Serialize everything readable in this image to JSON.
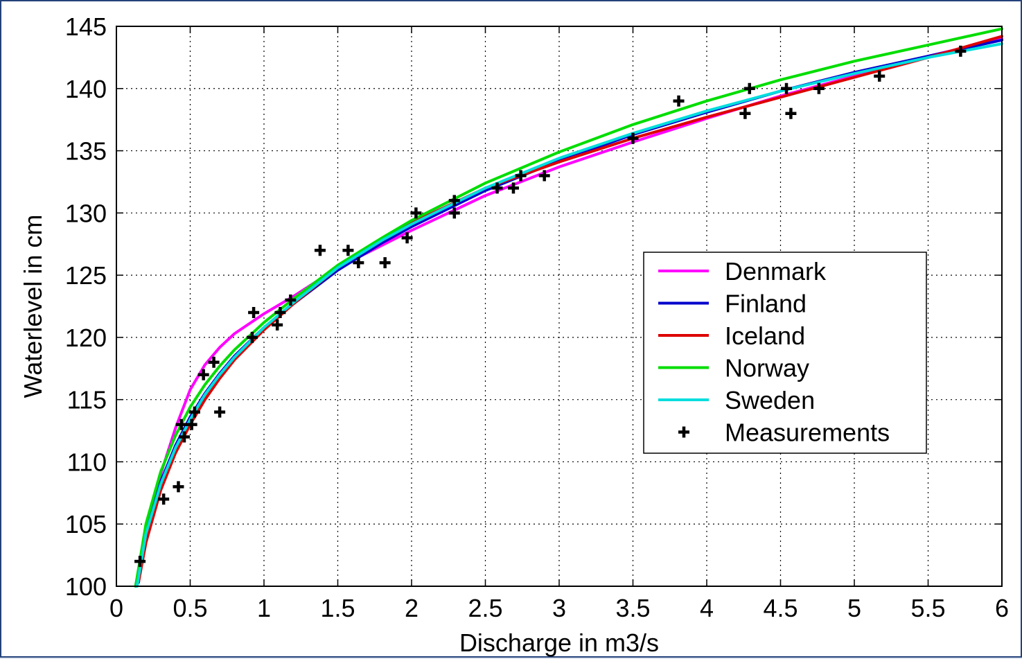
{
  "chart_data": {
    "type": "line",
    "title": "",
    "xlabel": "Discharge in m3/s",
    "ylabel": "Waterlevel in cm",
    "xlim": [
      0,
      6
    ],
    "ylim": [
      100,
      145
    ],
    "xticks": [
      0,
      0.5,
      1,
      1.5,
      2,
      2.5,
      3,
      3.5,
      4,
      4.5,
      5,
      5.5,
      6
    ],
    "xtick_labels": [
      "0",
      "0.5",
      "1",
      "1.5",
      "2",
      "2.5",
      "3",
      "3.5",
      "4",
      "4.5",
      "5",
      "5.5",
      "6"
    ],
    "yticks": [
      100,
      105,
      110,
      115,
      120,
      125,
      130,
      135,
      140,
      145
    ],
    "ytick_labels": [
      "100",
      "105",
      "110",
      "115",
      "120",
      "125",
      "130",
      "135",
      "140",
      "145"
    ],
    "grid": true,
    "legend_position": "center-right",
    "series": [
      {
        "name": "Denmark",
        "color": "#ff00ff",
        "x": [
          0.15,
          0.2,
          0.3,
          0.4,
          0.5,
          0.6,
          0.7,
          0.8,
          1.0,
          1.2,
          1.5,
          1.8,
          2.0,
          2.5,
          3.0,
          3.5,
          4.0,
          4.5,
          5.0,
          5.5,
          6.0
        ],
        "y": [
          100.3,
          104.0,
          109.0,
          112.7,
          115.8,
          117.8,
          119.2,
          120.3,
          121.9,
          123.3,
          125.6,
          127.4,
          128.6,
          131.4,
          133.7,
          135.7,
          137.6,
          139.4,
          141.0,
          142.6,
          144.0
        ]
      },
      {
        "name": "Finland",
        "color": "#0000cc",
        "x": [
          0.13,
          0.2,
          0.3,
          0.4,
          0.5,
          0.6,
          0.7,
          0.8,
          1.0,
          1.2,
          1.5,
          1.8,
          2.0,
          2.5,
          3.0,
          3.5,
          4.0,
          4.5,
          5.0,
          5.5,
          6.0
        ],
        "y": [
          100.0,
          104.4,
          108.4,
          111.3,
          113.6,
          115.5,
          117.1,
          118.5,
          120.8,
          122.7,
          125.4,
          127.6,
          128.9,
          131.8,
          134.2,
          136.3,
          138.1,
          139.8,
          141.3,
          142.6,
          143.9
        ]
      },
      {
        "name": "Iceland",
        "color": "#dd0000",
        "x": [
          0.15,
          0.2,
          0.3,
          0.4,
          0.5,
          0.6,
          0.7,
          0.8,
          1.0,
          1.2,
          1.5,
          1.8,
          2.0,
          2.5,
          3.0,
          3.5,
          4.0,
          4.5,
          5.0,
          5.5,
          6.0
        ],
        "y": [
          100.3,
          103.5,
          107.7,
          110.7,
          113.0,
          115.0,
          116.7,
          118.2,
          120.6,
          122.7,
          125.6,
          127.9,
          129.2,
          132.0,
          134.1,
          136.0,
          137.7,
          139.3,
          140.9,
          142.5,
          144.2
        ]
      },
      {
        "name": "Norway",
        "color": "#00dd00",
        "x": [
          0.13,
          0.2,
          0.3,
          0.4,
          0.5,
          0.6,
          0.7,
          0.8,
          1.0,
          1.2,
          1.5,
          1.8,
          2.0,
          2.5,
          3.0,
          3.5,
          4.0,
          4.5,
          5.0,
          5.5,
          6.0
        ],
        "y": [
          100.0,
          105.0,
          109.2,
          112.1,
          114.4,
          116.2,
          117.7,
          119.0,
          121.2,
          123.1,
          125.8,
          128.0,
          129.4,
          132.4,
          134.9,
          137.1,
          139.0,
          140.7,
          142.2,
          143.5,
          144.8
        ]
      },
      {
        "name": "Sweden",
        "color": "#00dddd",
        "x": [
          0.14,
          0.2,
          0.3,
          0.4,
          0.5,
          0.6,
          0.7,
          0.8,
          1.0,
          1.2,
          1.5,
          1.8,
          2.0,
          2.5,
          3.0,
          3.5,
          4.0,
          4.5,
          5.0,
          5.5,
          6.0
        ],
        "y": [
          100.0,
          104.2,
          108.2,
          111.1,
          113.4,
          115.4,
          117.0,
          118.4,
          120.8,
          122.8,
          125.6,
          127.8,
          129.1,
          132.0,
          134.4,
          136.4,
          138.2,
          139.8,
          141.2,
          142.5,
          143.6
        ]
      }
    ],
    "measurements": {
      "name": "Measurements",
      "color": "#000000",
      "x": [
        0.16,
        0.32,
        0.42,
        0.44,
        0.46,
        0.51,
        0.53,
        0.59,
        0.66,
        0.7,
        0.92,
        0.93,
        1.09,
        1.11,
        1.18,
        1.38,
        1.57,
        1.64,
        1.82,
        1.97,
        2.03,
        2.29,
        2.29,
        2.58,
        2.69,
        2.74,
        2.9,
        3.5,
        3.81,
        4.26,
        4.29,
        4.54,
        4.57,
        4.76,
        5.17,
        5.72
      ],
      "y": [
        102,
        107,
        108,
        113,
        112,
        113,
        114,
        117,
        118,
        114,
        120,
        122,
        121,
        122,
        123,
        127,
        127,
        126,
        126,
        128,
        130,
        130,
        131,
        132,
        132,
        133,
        133,
        136,
        139,
        138,
        140,
        140,
        138,
        140,
        141,
        143
      ]
    }
  }
}
